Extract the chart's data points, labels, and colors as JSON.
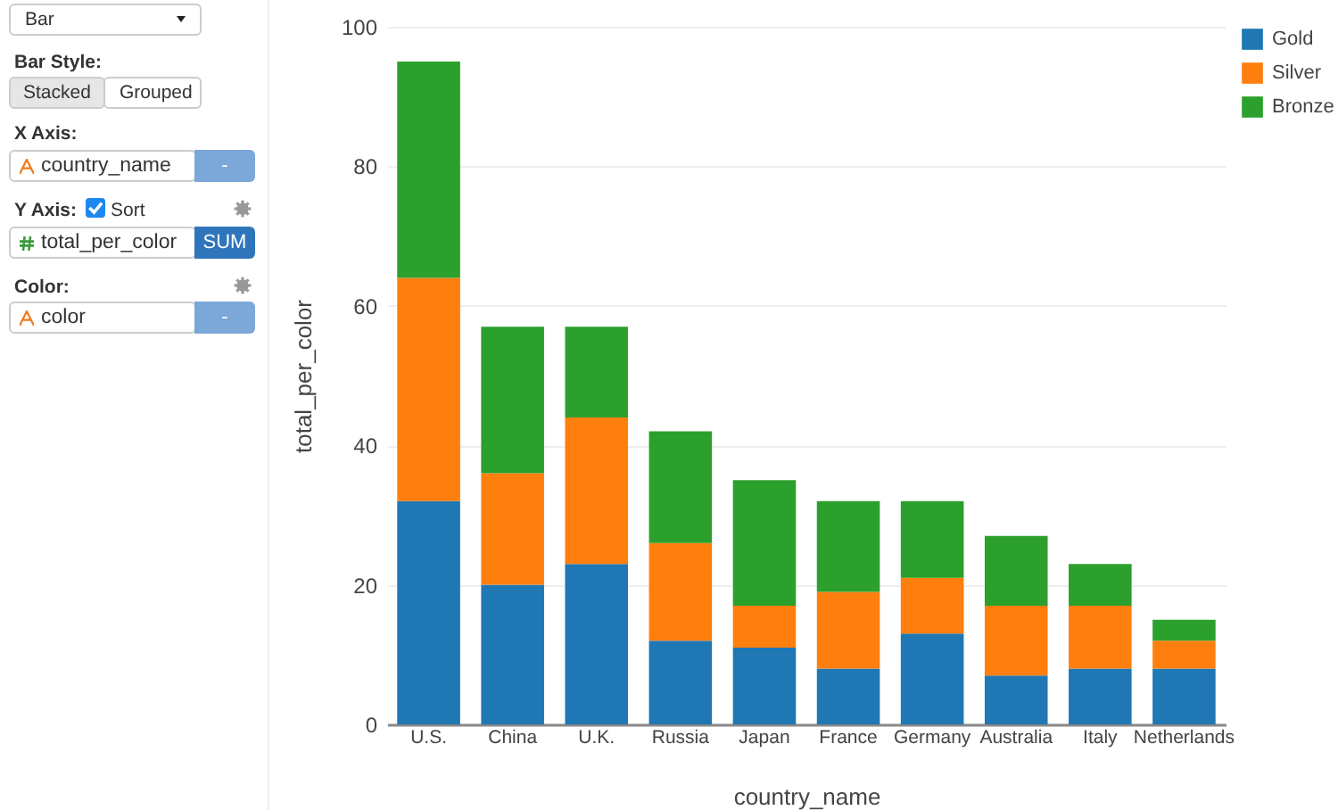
{
  "chart_data": {
    "type": "bar",
    "stacked": true,
    "xlabel": "country_name",
    "ylabel": "total_per_color",
    "categories": [
      "U.S.",
      "China",
      "U.K.",
      "Russia",
      "Japan",
      "France",
      "Germany",
      "Australia",
      "Italy",
      "Netherlands"
    ],
    "series": [
      {
        "name": "Gold",
        "color": "#1f77b4",
        "values": [
          32,
          20,
          23,
          12,
          11,
          8,
          13,
          7,
          8,
          8
        ]
      },
      {
        "name": "Silver",
        "color": "#ff7f0e",
        "values": [
          32,
          16,
          21,
          14,
          6,
          11,
          8,
          10,
          9,
          4
        ]
      },
      {
        "name": "Bronze",
        "color": "#2ca02c",
        "values": [
          31,
          21,
          13,
          16,
          18,
          13,
          11,
          10,
          6,
          3
        ]
      }
    ],
    "ylim": [
      0,
      100
    ],
    "yticks": [
      0,
      20,
      40,
      60,
      80,
      100
    ],
    "grid": "y",
    "legend": "top right",
    "annotations": [
      "Bar",
      "Bar Style:",
      "Stacked",
      "Grouped",
      "X Axis:",
      "country_name",
      "-",
      "Y Axis:",
      "Sort",
      "total_per_color",
      "SUM",
      "Color:",
      "color",
      "-"
    ]
  }
}
